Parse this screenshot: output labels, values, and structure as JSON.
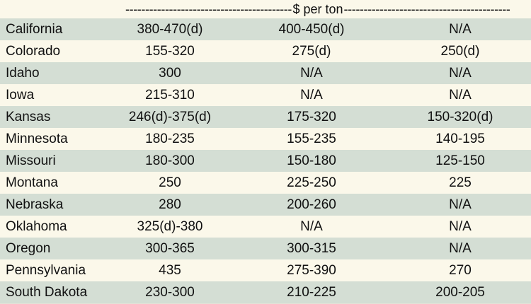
{
  "header": {
    "unit_label": "$ per ton",
    "left_dashes": "---------------------------------------------------------------",
    "right_dashes": "---------------------------------------------------------------"
  },
  "rows": [
    {
      "state": "California",
      "values": [
        "380-470(d)",
        "400-450(d)",
        "N/A"
      ]
    },
    {
      "state": "Colorado",
      "values": [
        "155-320",
        "275(d)",
        "250(d)"
      ]
    },
    {
      "state": "Idaho",
      "values": [
        "300",
        "N/A",
        "N/A"
      ]
    },
    {
      "state": "Iowa",
      "values": [
        "215-310",
        "N/A",
        "N/A"
      ]
    },
    {
      "state": "Kansas",
      "values": [
        "246(d)-375(d)",
        "175-320",
        "150-320(d)"
      ]
    },
    {
      "state": "Minnesota",
      "values": [
        "180-235",
        "155-235",
        "140-195"
      ]
    },
    {
      "state": "Missouri",
      "values": [
        "180-300",
        "150-180",
        "125-150"
      ]
    },
    {
      "state": "Montana",
      "values": [
        "250",
        "225-250",
        "225"
      ]
    },
    {
      "state": "Nebraska",
      "values": [
        "280",
        "200-260",
        "N/A"
      ]
    },
    {
      "state": "Oklahoma",
      "values": [
        "325(d)-380",
        "N/A",
        "N/A"
      ]
    },
    {
      "state": "Oregon",
      "values": [
        "300-365",
        "300-315",
        "N/A"
      ]
    },
    {
      "state": "Pennsylvania",
      "values": [
        "435",
        "275-390",
        "270"
      ]
    },
    {
      "state": "South Dakota",
      "values": [
        "230-300",
        "210-225",
        "200-205"
      ]
    }
  ]
}
